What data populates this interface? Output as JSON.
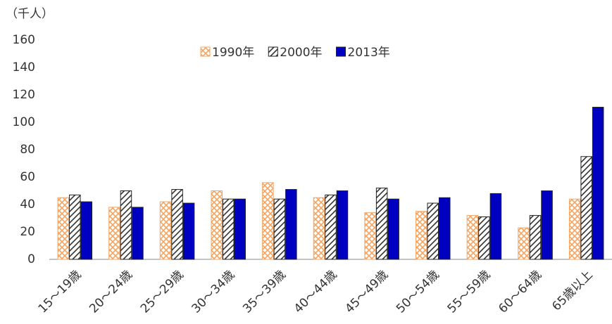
{
  "chart_data": {
    "type": "bar",
    "unit_label": "（千人）",
    "categories": [
      "15～19歳",
      "20～24歳",
      "25～29歳",
      "30～34歳",
      "35～39歳",
      "40～44歳",
      "45～49歳",
      "50～54歳",
      "55～59歳",
      "60～64歳",
      "65歳以上"
    ],
    "series": [
      {
        "name": "1990年",
        "color": "#f4a460",
        "pattern": "crosshatch",
        "values": [
          45,
          38,
          42,
          50,
          56,
          45,
          34,
          35,
          32,
          23,
          44
        ]
      },
      {
        "name": "2000年",
        "color": "#333333",
        "pattern": "diagonal",
        "values": [
          47,
          50,
          51,
          44,
          44,
          47,
          52,
          41,
          31,
          32,
          75
        ]
      },
      {
        "name": "2013年",
        "color": "#0000c0",
        "pattern": "solid",
        "values": [
          42,
          38,
          41,
          44,
          51,
          50,
          44,
          45,
          48,
          50,
          111
        ]
      }
    ],
    "ylim": [
      0,
      160
    ],
    "yticks": [
      0,
      20,
      40,
      60,
      80,
      100,
      120,
      140,
      160
    ],
    "grid": false,
    "legend": "top"
  }
}
